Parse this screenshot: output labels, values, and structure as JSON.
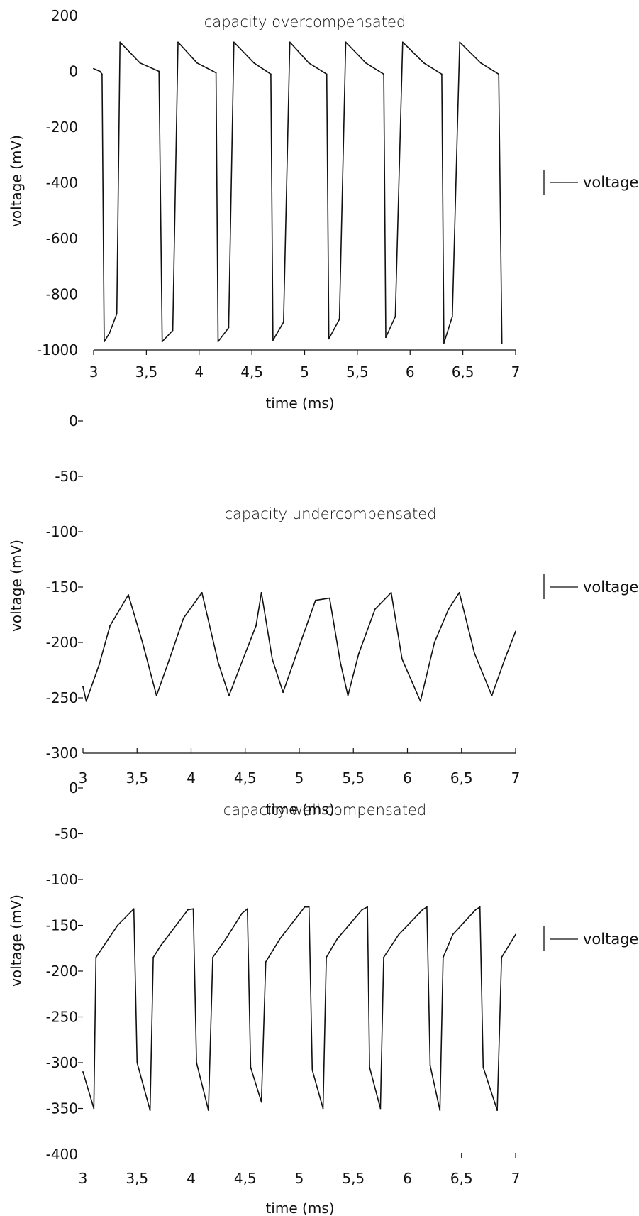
{
  "chart_data": [
    {
      "type": "line",
      "title": "capacity overcompensated",
      "xlabel": "time (ms)",
      "ylabel": "voltage (mV)",
      "xlim": [
        3,
        7
      ],
      "ylim": [
        -1000,
        200
      ],
      "xticks": [
        "3",
        "3,5",
        "4",
        "4,5",
        "5",
        "5,5",
        "6",
        "6,5",
        "7"
      ],
      "yticks": [
        "200",
        "0",
        "-200",
        "-400",
        "-600",
        "-800",
        "-1000"
      ],
      "grid": false,
      "legend": "right",
      "series": [
        {
          "name": "voltage",
          "x": [
            3.0,
            3.06,
            3.08,
            3.1,
            3.15,
            3.22,
            3.25,
            3.44,
            3.62,
            3.65,
            3.75,
            3.8,
            3.98,
            4.16,
            4.18,
            4.28,
            4.33,
            4.52,
            4.68,
            4.7,
            4.8,
            4.86,
            5.04,
            5.21,
            5.23,
            5.33,
            5.39,
            5.58,
            5.75,
            5.77,
            5.86,
            5.93,
            6.13,
            6.3,
            6.32,
            6.4,
            6.47,
            6.67,
            6.84,
            6.87
          ],
          "y": [
            10,
            0,
            -10,
            -970,
            -940,
            -870,
            105,
            30,
            0,
            -970,
            -930,
            105,
            30,
            -5,
            -970,
            -920,
            105,
            30,
            -10,
            -965,
            -900,
            105,
            30,
            -10,
            -960,
            -890,
            105,
            30,
            -10,
            -955,
            -880,
            105,
            30,
            -10,
            -975,
            -880,
            105,
            30,
            -10,
            -975
          ]
        }
      ]
    },
    {
      "type": "line",
      "title": "capacity undercompensated",
      "xlabel": "time (ms)",
      "ylabel": "voltage (mV)",
      "xlim": [
        3,
        7
      ],
      "ylim": [
        -300,
        0
      ],
      "xticks": [
        "3",
        "3,5",
        "4",
        "4,5",
        "5",
        "5,5",
        "6",
        "6,5",
        "7"
      ],
      "yticks": [
        "0",
        "-50",
        "-100",
        "-150",
        "-200",
        "-250",
        "-300"
      ],
      "grid": false,
      "legend": "right",
      "series": [
        {
          "name": "voltage",
          "x": [
            3.0,
            3.03,
            3.15,
            3.25,
            3.42,
            3.55,
            3.68,
            3.8,
            3.93,
            4.1,
            4.25,
            4.35,
            4.48,
            4.6,
            4.65,
            4.75,
            4.85,
            5.03,
            5.15,
            5.28,
            5.38,
            5.45,
            5.55,
            5.7,
            5.85,
            5.95,
            6.12,
            6.25,
            6.38,
            6.48,
            6.62,
            6.78,
            6.9,
            7.0
          ],
          "y": [
            -240,
            -253,
            -220,
            -185,
            -157,
            -200,
            -248,
            -215,
            -178,
            -155,
            -218,
            -248,
            -215,
            -185,
            -155,
            -215,
            -245,
            -195,
            -162,
            -160,
            -218,
            -248,
            -210,
            -170,
            -155,
            -215,
            -253,
            -200,
            -170,
            -155,
            -210,
            -248,
            -215,
            -190
          ]
        }
      ]
    },
    {
      "type": "line",
      "title": "capacity well compensated",
      "xlabel": "time (ms)",
      "ylabel": "voltage (mV)",
      "xlim": [
        3,
        7
      ],
      "ylim": [
        -400,
        0
      ],
      "xticks": [
        "3",
        "3,5",
        "4",
        "4,5",
        "5",
        "5,5",
        "6",
        "6,5",
        "7"
      ],
      "yticks": [
        "0",
        "-50",
        "-100",
        "-150",
        "-200",
        "-250",
        "-300",
        "-350",
        "-400"
      ],
      "grid": false,
      "legend": "right",
      "series": [
        {
          "name": "voltage",
          "x": [
            3.0,
            3.1,
            3.12,
            3.32,
            3.47,
            3.5,
            3.62,
            3.65,
            3.72,
            3.97,
            4.02,
            4.05,
            4.16,
            4.2,
            4.32,
            4.47,
            4.52,
            4.55,
            4.65,
            4.69,
            4.82,
            5.05,
            5.09,
            5.12,
            5.22,
            5.25,
            5.35,
            5.58,
            5.63,
            5.65,
            5.75,
            5.78,
            5.92,
            6.14,
            6.18,
            6.21,
            6.3,
            6.33,
            6.42,
            6.63,
            6.67,
            6.7,
            6.83,
            6.87,
            7.0
          ],
          "y": [
            -310,
            -350,
            -185,
            -150,
            -132,
            -300,
            -352,
            -185,
            -172,
            -133,
            -132,
            -300,
            -352,
            -185,
            -165,
            -137,
            -132,
            -305,
            -343,
            -190,
            -165,
            -130,
            -130,
            -308,
            -350,
            -185,
            -165,
            -133,
            -130,
            -305,
            -350,
            -185,
            -160,
            -133,
            -130,
            -303,
            -352,
            -185,
            -160,
            -133,
            -130,
            -305,
            -352,
            -185,
            -160
          ]
        }
      ]
    }
  ]
}
